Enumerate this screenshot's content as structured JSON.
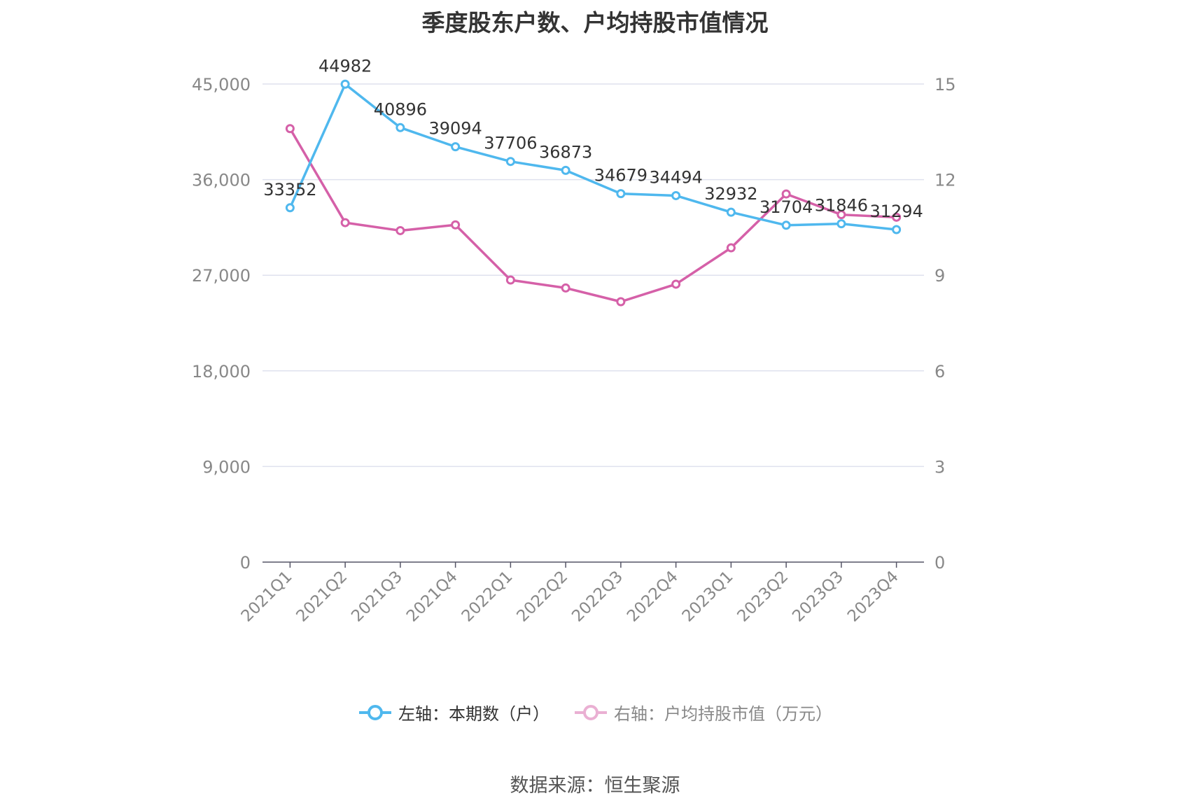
{
  "chart_data": {
    "type": "line",
    "title": "季度股东户数、户均持股市值情况",
    "categories": [
      "2021Q1",
      "2021Q2",
      "2021Q3",
      "2021Q4",
      "2022Q1",
      "2022Q2",
      "2022Q3",
      "2022Q4",
      "2023Q1",
      "2023Q2",
      "2023Q3",
      "2023Q4"
    ],
    "series": [
      {
        "name": "左轴：本期数（户）",
        "axis": "left",
        "color": "#4fb8ee",
        "values": [
          33352,
          44982,
          40896,
          39094,
          37706,
          36873,
          34679,
          34494,
          32932,
          31704,
          31846,
          31294
        ],
        "labels": [
          "33352",
          "44982",
          "40896",
          "39094",
          "37706",
          "36873",
          "34679",
          "34494",
          "32932",
          "31704",
          "31846",
          "31294"
        ]
      },
      {
        "name": "右轴：户均持股市值（万元）",
        "axis": "right",
        "color": "#d560a8",
        "values": [
          13.6,
          10.65,
          10.4,
          10.58,
          8.85,
          8.6,
          8.17,
          8.72,
          9.86,
          11.55,
          10.9,
          10.82
        ]
      }
    ],
    "left_axis": {
      "ylim": [
        0,
        45000
      ],
      "ticks": [
        "0",
        "9,000",
        "18,000",
        "27,000",
        "36,000",
        "45,000"
      ]
    },
    "right_axis": {
      "ylim": [
        0,
        15
      ],
      "ticks": [
        "0",
        "3",
        "6",
        "9",
        "12",
        "15"
      ]
    },
    "grid": true,
    "legend": "bottom"
  },
  "source": "数据来源：恒生聚源"
}
